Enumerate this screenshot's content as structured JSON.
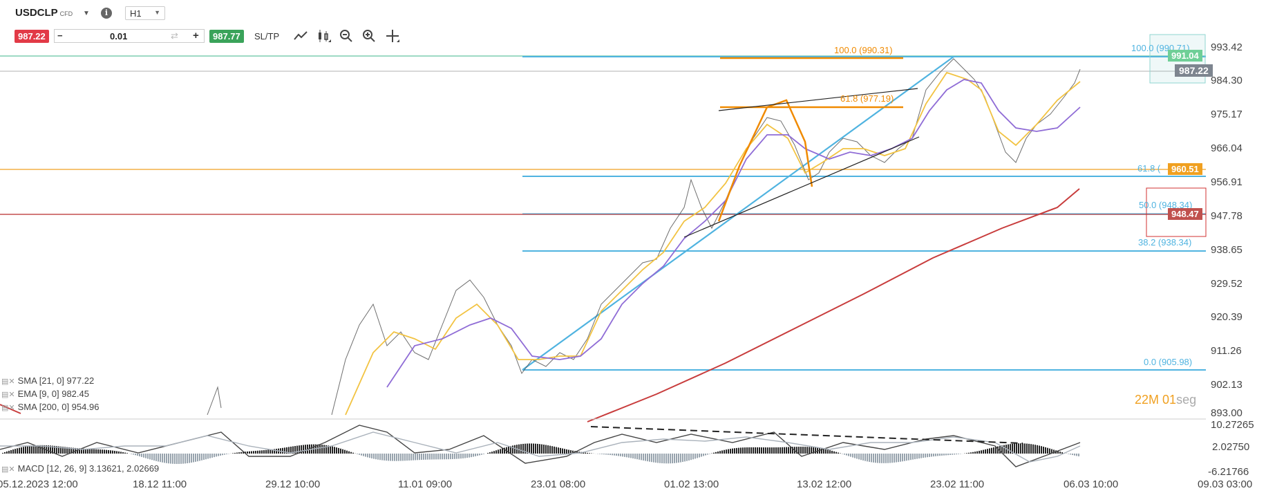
{
  "toolbar": {
    "symbol": "USDCLP",
    "symbol_type": "CFD",
    "info_icon": "i",
    "timeframe": "H1",
    "sell_price": "987.22",
    "volume": "0.01",
    "buy_price": "987.77",
    "sltp_label": "SL/TP",
    "tools": [
      "line-chart-icon",
      "candlestick-icon",
      "zoom-out-icon",
      "zoom-in-icon",
      "crosshair-icon"
    ]
  },
  "price_axis": [
    "993.42",
    "984.30",
    "975.17",
    "966.04",
    "956.91",
    "947.78",
    "938.65",
    "929.52",
    "920.39",
    "911.26",
    "902.13",
    "893.00"
  ],
  "macd_axis": [
    "10.27265",
    "2.02750",
    "-6.21766"
  ],
  "time_axis": [
    "05.12.2023 12:00",
    "18.12 11:00",
    "29.12 10:00",
    "11.01 09:00",
    "23.01 08:00",
    "01.02 13:00",
    "13.02 12:00",
    "23.02 11:00",
    "06.03 10:00",
    "09.03 03:00"
  ],
  "price_tags": {
    "current": "987.22",
    "green_line": "991.04",
    "orange_line": "960.51",
    "red_line": "948.47"
  },
  "fib_right": {
    "f100": "100.0 (990.71)",
    "f618": "61.8 (",
    "f50": "50.0 (948.34)",
    "f382": "38.2 (938.34)",
    "f0": "0.0 (905.98)"
  },
  "fib_orange": {
    "f100": "100.0 (990.31)",
    "f618": "61.8 (977.19)"
  },
  "indicators": {
    "sma21": "SMA [21, 0] 977.22",
    "ema9": "EMA [9, 0] 982.45",
    "sma200": "SMA [200, 0] 954.96",
    "macd": "MACD [12, 26, 9] 3.13621, 2.02669"
  },
  "timer": {
    "minutes": "22M",
    "seconds_value": "01",
    "seconds_unit": "seg"
  },
  "colors": {
    "sell": "#e23a47",
    "buy": "#3aa35a",
    "fib_blue": "#4fb3e0",
    "fib_orange": "#f08a00",
    "sma21": "#8f6cd6",
    "ema9": "#f2c342",
    "sma200": "#c83c3c",
    "green_line": "#3bb58a",
    "orange_line": "#f0a020",
    "red_line": "#b62b2b"
  },
  "chart_data": {
    "type": "line",
    "title": "",
    "y_range": [
      893.0,
      993.42
    ],
    "x_range": [
      "05.12.2023 12:00",
      "09.03 03:00"
    ],
    "series": [
      {
        "name": "SMA [21, 0]",
        "last": 977.22
      },
      {
        "name": "EMA [9, 0]",
        "last": 982.45
      },
      {
        "name": "SMA [200, 0]",
        "last": 954.96
      }
    ],
    "price_path": [
      {
        "x": "11.01 09:00",
        "y": 910
      },
      {
        "x": "13.01",
        "y": 920
      },
      {
        "x": "16.01",
        "y": 911
      },
      {
        "x": "18.01",
        "y": 925
      },
      {
        "x": "20.01",
        "y": 918
      },
      {
        "x": "23.01 08:00",
        "y": 906
      },
      {
        "x": "25.01",
        "y": 913
      },
      {
        "x": "27.01",
        "y": 925
      },
      {
        "x": "30.01",
        "y": 935
      },
      {
        "x": "01.02 13:00",
        "y": 945
      },
      {
        "x": "03.02",
        "y": 955
      },
      {
        "x": "06.02",
        "y": 966
      },
      {
        "x": "08.02",
        "y": 974
      },
      {
        "x": "10.02",
        "y": 960
      },
      {
        "x": "13.02 12:00",
        "y": 962
      },
      {
        "x": "15.02",
        "y": 966
      },
      {
        "x": "18.02",
        "y": 968
      },
      {
        "x": "21.02",
        "y": 985
      },
      {
        "x": "23.02 11:00",
        "y": 990
      },
      {
        "x": "26.02",
        "y": 982
      },
      {
        "x": "29.02",
        "y": 962
      },
      {
        "x": "02.03",
        "y": 970
      },
      {
        "x": "04.03",
        "y": 980
      },
      {
        "x": "06.03 10:00",
        "y": 987.22
      }
    ],
    "macd": {
      "value": 3.13621,
      "signal": 2.02669,
      "y_range": [
        -6.21766,
        10.27265
      ]
    }
  }
}
